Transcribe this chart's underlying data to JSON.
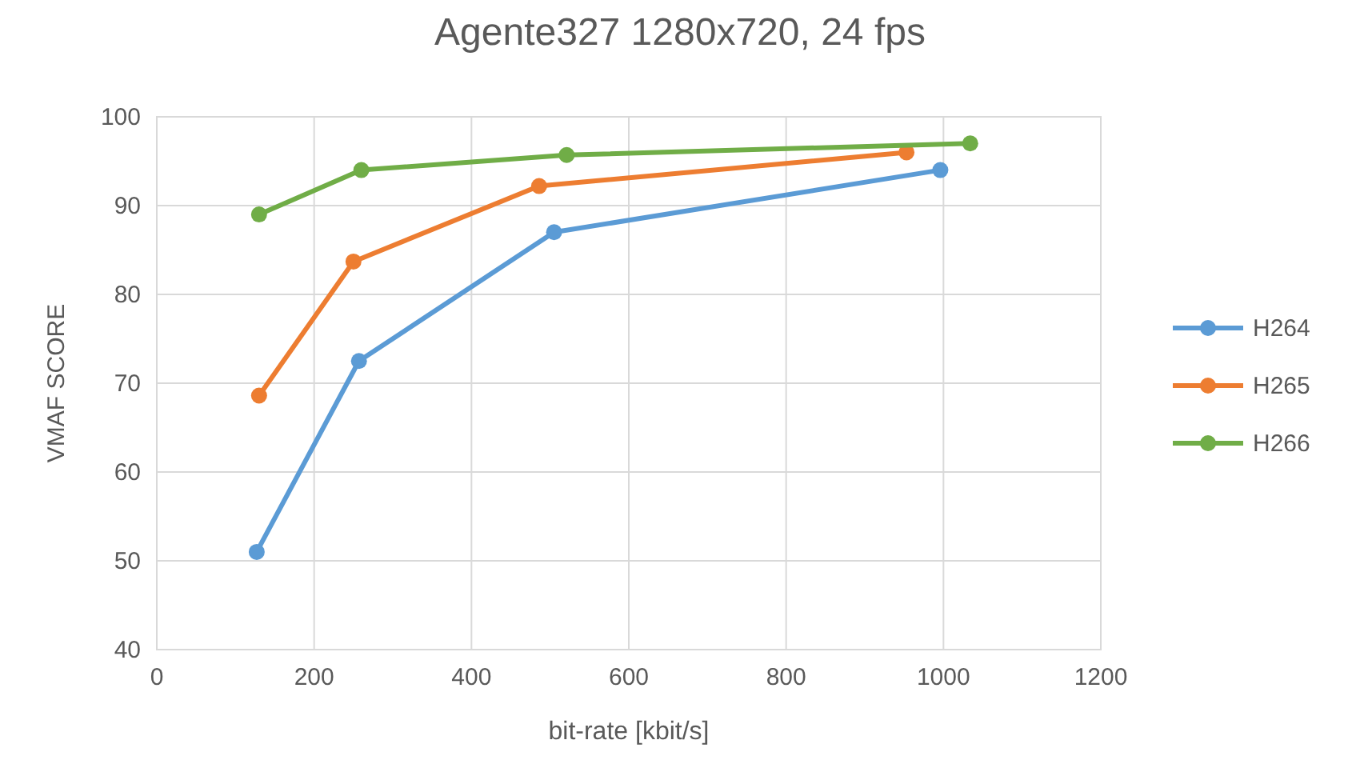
{
  "chart_data": {
    "type": "line",
    "title": "Agente327 1280x720, 24 fps",
    "xlabel": "bit-rate [kbit/s]",
    "ylabel": "VMAF SCORE",
    "xlim": [
      0,
      1200
    ],
    "xticks": [
      0,
      200,
      400,
      600,
      800,
      1000,
      1200
    ],
    "ylim": [
      40,
      100
    ],
    "yticks": [
      40,
      50,
      60,
      70,
      80,
      90,
      100
    ],
    "grid": true,
    "legend": "right",
    "marker": "circle",
    "series": [
      {
        "name": "H264",
        "color": "#5b9bd5",
        "x": [
          127,
          257,
          505,
          996
        ],
        "values": [
          51,
          72.5,
          87,
          94
        ]
      },
      {
        "name": "H265",
        "color": "#ed7d31",
        "x": [
          130,
          250,
          486,
          953
        ],
        "values": [
          68.6,
          83.7,
          92.2,
          96
        ]
      },
      {
        "name": "H266",
        "color": "#70ad47",
        "x": [
          130,
          260,
          521,
          1034
        ],
        "values": [
          89,
          94,
          95.7,
          97
        ]
      }
    ]
  }
}
